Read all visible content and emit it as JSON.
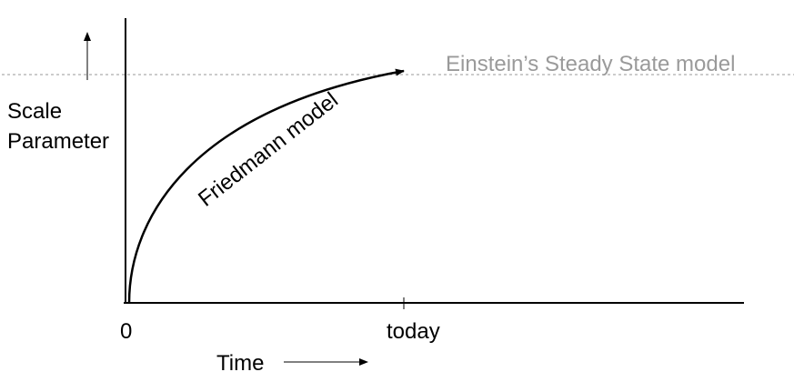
{
  "diagram": {
    "y_axis_label_line1": "Scale",
    "y_axis_label_line2": "Parameter",
    "x_axis_label": "Time",
    "origin_tick_label": "0",
    "today_tick_label": "today",
    "steady_state_label": "Einstein’s Steady State model",
    "friedmann_label": "Friedmann model"
  },
  "colors": {
    "curve": "#000000",
    "axes": "#000000",
    "steady_state_line": "#9a9a9a",
    "steady_state_text": "#9a9a9a"
  }
}
